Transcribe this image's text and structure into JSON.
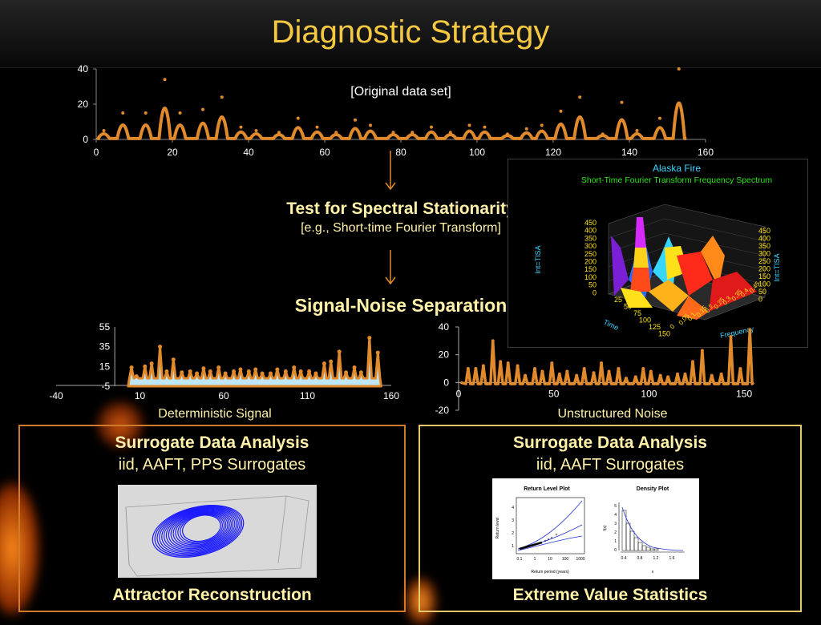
{
  "title": "Diagnostic Strategy",
  "steps": {
    "spectral_title": "Test for Spectral Stationarity",
    "spectral_sub": "[e.g., Short-time Fourier Transform]",
    "separation": "Signal-Noise Separation"
  },
  "stft": {
    "title": "Alaska Fire",
    "subtitle": "Short-Time Fourier Transform Frequency Spectrum",
    "z_label": "Int=TISA",
    "time_label": "Time",
    "freq_label": "Frequency",
    "z_ticks": [
      "450",
      "400",
      "350",
      "300",
      "250",
      "200",
      "150",
      "100",
      "50",
      "0"
    ],
    "time_ticks": [
      "25",
      "50",
      "75",
      "100",
      "125",
      "150"
    ],
    "freq_ticks": [
      "0",
      "0.05",
      "0.1",
      "0.15",
      "0.2",
      "0.25",
      "0.3",
      "0.35",
      "0.4",
      "0.45"
    ]
  },
  "left_panel": {
    "title": "Surrogate Data Analysis",
    "sub": "iid, AAFT, PPS Surrogates",
    "foot": "Attractor Reconstruction"
  },
  "right_panel": {
    "title": "Surrogate Data Analysis",
    "sub": "iid, AAFT Surrogates",
    "foot": "Extreme Value Statistics",
    "return_title": "Return Level Plot",
    "return_xlabel": "Return period (years)",
    "return_ylabel": "Return level",
    "return_xticks": [
      "0.1",
      "1",
      "10",
      "100",
      "1000"
    ],
    "return_yticks": [
      "1",
      "2",
      "3",
      "4"
    ],
    "density_title": "Density Plot",
    "density_xlabel": "x",
    "density_ylabel": "f(x)",
    "density_xticks": [
      "0.4",
      "0.8",
      "1.2",
      "1.6"
    ],
    "density_yticks": [
      "0",
      "1",
      "2",
      "3",
      "4",
      "5"
    ]
  },
  "colors": {
    "series": "#e08a2c",
    "signal_fill": "#bfe6f7",
    "title": "#f5c842",
    "label": "#fff1a8",
    "attractor": "#1a1aff"
  },
  "chart_data": [
    {
      "type": "line",
      "id": "original",
      "title": "[Original data set]",
      "xlim": [
        0,
        160
      ],
      "ylim": [
        0,
        40
      ],
      "xticks": [
        0,
        20,
        40,
        60,
        80,
        100,
        120,
        140,
        160
      ],
      "yticks": [
        0,
        20,
        40
      ],
      "x": [
        2,
        7,
        13,
        18,
        22,
        28,
        33,
        38,
        42,
        48,
        53,
        58,
        63,
        68,
        72,
        78,
        83,
        88,
        93,
        98,
        102,
        108,
        113,
        117,
        122,
        127,
        133,
        138,
        142,
        148,
        153
      ],
      "values": [
        5,
        15,
        15,
        34,
        15,
        17,
        24,
        7,
        5,
        4,
        12,
        7,
        4,
        11,
        8,
        4,
        4,
        7,
        4,
        8,
        7,
        3,
        6,
        8,
        16,
        24,
        3,
        21,
        5,
        12,
        40
      ]
    },
    {
      "type": "area",
      "id": "deterministic",
      "xlabel": "Deterministic Signal",
      "xlim": [
        -40,
        160
      ],
      "ylim": [
        -5,
        55
      ],
      "xticks": [
        -40,
        10,
        60,
        110,
        160
      ],
      "yticks": [
        -5,
        15,
        35,
        55
      ],
      "x": [
        5,
        8,
        13,
        17,
        22,
        26,
        30,
        35,
        40,
        44,
        48,
        52,
        57,
        61,
        66,
        70,
        75,
        79,
        83,
        88,
        92,
        97,
        102,
        106,
        111,
        115,
        120,
        124,
        129,
        133,
        138,
        142,
        147,
        152
      ],
      "values": [
        14,
        5,
        15,
        18,
        35,
        10,
        22,
        9,
        10,
        8,
        13,
        10,
        14,
        8,
        10,
        12,
        10,
        12,
        8,
        8,
        12,
        10,
        14,
        10,
        10,
        8,
        18,
        20,
        30,
        9,
        14,
        9,
        44,
        29
      ]
    },
    {
      "type": "line",
      "id": "noise",
      "xlabel": "Unstructured Noise",
      "xlim": [
        0,
        155
      ],
      "ylim": [
        -20,
        40
      ],
      "xticks": [
        0,
        50,
        100,
        150
      ],
      "yticks": [
        -20,
        0,
        20,
        40
      ],
      "x": [
        5,
        9,
        13,
        18,
        22,
        26,
        31,
        35,
        40,
        44,
        49,
        53,
        57,
        62,
        66,
        71,
        75,
        79,
        84,
        88,
        93,
        97,
        101,
        106,
        110,
        115,
        119,
        123,
        128,
        133,
        138,
        143,
        148,
        153
      ],
      "values": [
        10,
        10,
        12,
        30,
        15,
        14,
        12,
        5,
        10,
        8,
        14,
        6,
        8,
        5,
        10,
        7,
        14,
        8,
        10,
        3,
        4,
        10,
        8,
        5,
        4,
        6,
        6,
        15,
        23,
        5,
        6,
        33,
        10,
        38
      ]
    }
  ]
}
